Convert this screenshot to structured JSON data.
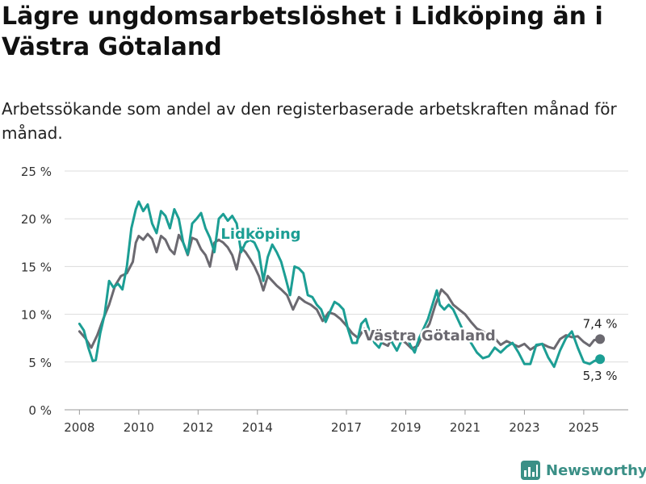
{
  "header": {
    "title": "Lägre ungdomsarbetslöshet i Lidköping än i Västra Götaland",
    "subtitle": "Arbetssökande som andel av den registerbaserade arbetskraften månad för månad."
  },
  "brand": {
    "name": "Newsworthy",
    "icon": "newsworthy-logo-icon",
    "color": "#3a8f86"
  },
  "chart_data": {
    "type": "line",
    "title": "Lägre ungdomsarbetslöshet i Lidköping än i Västra Götaland",
    "subtitle": "Arbetssökande som andel av den registerbaserade arbetskraften månad för månad.",
    "xlabel": "",
    "ylabel": "",
    "y_unit": "%",
    "ylim": [
      0,
      25
    ],
    "yticks": [
      0,
      5,
      10,
      15,
      20,
      25
    ],
    "ytick_labels": [
      "0 %",
      "5 %",
      "10 %",
      "15 %",
      "20 %",
      "25 %"
    ],
    "xlim": [
      2007.5,
      2026.5
    ],
    "xticks": [
      2008,
      2010,
      2012,
      2014,
      2017,
      2019,
      2021,
      2023,
      2025
    ],
    "xtick_labels": [
      "2008",
      "2010",
      "2012",
      "2014",
      "2017",
      "2019",
      "2021",
      "2023",
      "2025"
    ],
    "grid": "horizontal",
    "series": [
      {
        "name": "Västra Götaland",
        "color": "#6b6970",
        "end_label": "7,4 %",
        "points": [
          [
            2008.0,
            8.2
          ],
          [
            2008.2,
            7.5
          ],
          [
            2008.4,
            6.5
          ],
          [
            2008.6,
            7.8
          ],
          [
            2008.8,
            9.5
          ],
          [
            2009.0,
            11.0
          ],
          [
            2009.2,
            13.0
          ],
          [
            2009.4,
            14.0
          ],
          [
            2009.6,
            14.3
          ],
          [
            2009.8,
            15.5
          ],
          [
            2009.9,
            17.5
          ],
          [
            2010.0,
            18.2
          ],
          [
            2010.15,
            17.8
          ],
          [
            2010.3,
            18.4
          ],
          [
            2010.45,
            17.9
          ],
          [
            2010.6,
            16.5
          ],
          [
            2010.75,
            18.2
          ],
          [
            2010.9,
            17.8
          ],
          [
            2011.05,
            16.8
          ],
          [
            2011.2,
            16.3
          ],
          [
            2011.35,
            18.3
          ],
          [
            2011.5,
            17.5
          ],
          [
            2011.65,
            16.2
          ],
          [
            2011.8,
            18.0
          ],
          [
            2011.95,
            17.8
          ],
          [
            2012.1,
            16.8
          ],
          [
            2012.25,
            16.2
          ],
          [
            2012.4,
            15.0
          ],
          [
            2012.55,
            17.5
          ],
          [
            2012.7,
            17.8
          ],
          [
            2012.85,
            17.5
          ],
          [
            2013.0,
            17.0
          ],
          [
            2013.15,
            16.2
          ],
          [
            2013.3,
            14.7
          ],
          [
            2013.45,
            17.0
          ],
          [
            2013.6,
            16.5
          ],
          [
            2013.75,
            15.8
          ],
          [
            2013.9,
            15.0
          ],
          [
            2014.05,
            14.0
          ],
          [
            2014.2,
            12.5
          ],
          [
            2014.35,
            14.0
          ],
          [
            2014.5,
            13.5
          ],
          [
            2014.65,
            13.0
          ],
          [
            2014.8,
            12.6
          ],
          [
            2015.0,
            12.0
          ],
          [
            2015.2,
            10.5
          ],
          [
            2015.4,
            11.8
          ],
          [
            2015.6,
            11.3
          ],
          [
            2015.8,
            11.0
          ],
          [
            2016.0,
            10.5
          ],
          [
            2016.2,
            9.3
          ],
          [
            2016.4,
            10.2
          ],
          [
            2016.6,
            10.0
          ],
          [
            2016.8,
            9.5
          ],
          [
            2017.0,
            8.8
          ],
          [
            2017.2,
            8.0
          ],
          [
            2017.4,
            7.5
          ],
          [
            2017.6,
            8.5
          ],
          [
            2017.8,
            8.0
          ],
          [
            2018.0,
            7.8
          ],
          [
            2018.2,
            7.0
          ],
          [
            2018.4,
            6.7
          ],
          [
            2018.6,
            8.0
          ],
          [
            2018.8,
            7.4
          ],
          [
            2019.0,
            7.0
          ],
          [
            2019.2,
            6.4
          ],
          [
            2019.4,
            6.7
          ],
          [
            2019.6,
            8.0
          ],
          [
            2019.8,
            9.0
          ],
          [
            2020.0,
            11.0
          ],
          [
            2020.2,
            12.6
          ],
          [
            2020.4,
            12.0
          ],
          [
            2020.6,
            11.0
          ],
          [
            2020.8,
            10.5
          ],
          [
            2021.0,
            10.0
          ],
          [
            2021.2,
            9.2
          ],
          [
            2021.4,
            8.5
          ],
          [
            2021.6,
            8.2
          ],
          [
            2021.8,
            7.8
          ],
          [
            2022.0,
            7.5
          ],
          [
            2022.2,
            6.8
          ],
          [
            2022.4,
            7.2
          ],
          [
            2022.6,
            6.9
          ],
          [
            2022.8,
            6.6
          ],
          [
            2023.0,
            6.9
          ],
          [
            2023.2,
            6.3
          ],
          [
            2023.4,
            6.7
          ],
          [
            2023.6,
            6.9
          ],
          [
            2023.8,
            6.6
          ],
          [
            2024.0,
            6.4
          ],
          [
            2024.2,
            7.4
          ],
          [
            2024.4,
            7.8
          ],
          [
            2024.6,
            7.6
          ],
          [
            2024.8,
            7.7
          ],
          [
            2025.0,
            7.1
          ],
          [
            2025.2,
            6.7
          ],
          [
            2025.35,
            7.3
          ],
          [
            2025.55,
            7.4
          ]
        ]
      },
      {
        "name": "Lidköping",
        "color": "#1c9e94",
        "end_label": "5,3 %",
        "points": [
          [
            2008.0,
            9.0
          ],
          [
            2008.15,
            8.3
          ],
          [
            2008.3,
            6.5
          ],
          [
            2008.45,
            5.1
          ],
          [
            2008.55,
            5.2
          ],
          [
            2008.7,
            8.0
          ],
          [
            2008.85,
            10.0
          ],
          [
            2009.0,
            13.5
          ],
          [
            2009.15,
            12.8
          ],
          [
            2009.3,
            13.2
          ],
          [
            2009.45,
            12.6
          ],
          [
            2009.6,
            15.0
          ],
          [
            2009.75,
            19.0
          ],
          [
            2009.9,
            21.0
          ],
          [
            2010.0,
            21.8
          ],
          [
            2010.15,
            20.8
          ],
          [
            2010.3,
            21.5
          ],
          [
            2010.45,
            19.5
          ],
          [
            2010.6,
            18.5
          ],
          [
            2010.75,
            20.8
          ],
          [
            2010.9,
            20.3
          ],
          [
            2011.05,
            19.0
          ],
          [
            2011.2,
            21.0
          ],
          [
            2011.35,
            20.0
          ],
          [
            2011.5,
            17.5
          ],
          [
            2011.65,
            16.3
          ],
          [
            2011.8,
            19.5
          ],
          [
            2011.95,
            20.0
          ],
          [
            2012.1,
            20.6
          ],
          [
            2012.25,
            19.0
          ],
          [
            2012.4,
            18.0
          ],
          [
            2012.55,
            16.5
          ],
          [
            2012.7,
            20.0
          ],
          [
            2012.85,
            20.5
          ],
          [
            2013.0,
            19.8
          ],
          [
            2013.15,
            20.3
          ],
          [
            2013.3,
            19.5
          ],
          [
            2013.45,
            16.5
          ],
          [
            2013.6,
            17.5
          ],
          [
            2013.75,
            17.8
          ],
          [
            2013.9,
            17.5
          ],
          [
            2014.05,
            16.5
          ],
          [
            2014.2,
            13.5
          ],
          [
            2014.35,
            16.0
          ],
          [
            2014.5,
            17.3
          ],
          [
            2014.65,
            16.5
          ],
          [
            2014.8,
            15.5
          ],
          [
            2014.95,
            13.8
          ],
          [
            2015.1,
            12.0
          ],
          [
            2015.25,
            15.0
          ],
          [
            2015.4,
            14.8
          ],
          [
            2015.55,
            14.3
          ],
          [
            2015.7,
            12.0
          ],
          [
            2015.85,
            11.8
          ],
          [
            2016.0,
            11.0
          ],
          [
            2016.15,
            10.5
          ],
          [
            2016.3,
            9.2
          ],
          [
            2016.45,
            10.3
          ],
          [
            2016.6,
            11.3
          ],
          [
            2016.75,
            11.0
          ],
          [
            2016.9,
            10.5
          ],
          [
            2017.05,
            8.5
          ],
          [
            2017.2,
            7.0
          ],
          [
            2017.35,
            7.0
          ],
          [
            2017.5,
            9.0
          ],
          [
            2017.65,
            9.5
          ],
          [
            2017.8,
            8.0
          ],
          [
            2017.95,
            7.0
          ],
          [
            2018.1,
            6.5
          ],
          [
            2018.25,
            7.5
          ],
          [
            2018.4,
            8.0
          ],
          [
            2018.55,
            7.0
          ],
          [
            2018.7,
            6.2
          ],
          [
            2018.85,
            7.2
          ],
          [
            2019.0,
            8.0
          ],
          [
            2019.15,
            6.8
          ],
          [
            2019.3,
            6.0
          ],
          [
            2019.45,
            7.5
          ],
          [
            2019.6,
            8.5
          ],
          [
            2019.75,
            9.5
          ],
          [
            2019.9,
            11.0
          ],
          [
            2020.05,
            12.5
          ],
          [
            2020.15,
            11.0
          ],
          [
            2020.3,
            10.5
          ],
          [
            2020.45,
            11.0
          ],
          [
            2020.6,
            10.5
          ],
          [
            2020.75,
            9.5
          ],
          [
            2020.9,
            8.5
          ],
          [
            2021.0,
            8.0
          ],
          [
            2021.2,
            7.0
          ],
          [
            2021.4,
            6.0
          ],
          [
            2021.6,
            5.4
          ],
          [
            2021.8,
            5.6
          ],
          [
            2022.0,
            6.5
          ],
          [
            2022.2,
            6.0
          ],
          [
            2022.4,
            6.6
          ],
          [
            2022.6,
            7.0
          ],
          [
            2022.8,
            6.0
          ],
          [
            2023.0,
            4.8
          ],
          [
            2023.2,
            4.8
          ],
          [
            2023.4,
            6.8
          ],
          [
            2023.6,
            6.9
          ],
          [
            2023.8,
            5.5
          ],
          [
            2024.0,
            4.5
          ],
          [
            2024.2,
            6.2
          ],
          [
            2024.4,
            7.5
          ],
          [
            2024.6,
            8.2
          ],
          [
            2024.8,
            6.5
          ],
          [
            2025.0,
            5.0
          ],
          [
            2025.2,
            4.8
          ],
          [
            2025.35,
            5.1
          ],
          [
            2025.55,
            5.3
          ]
        ]
      }
    ]
  }
}
